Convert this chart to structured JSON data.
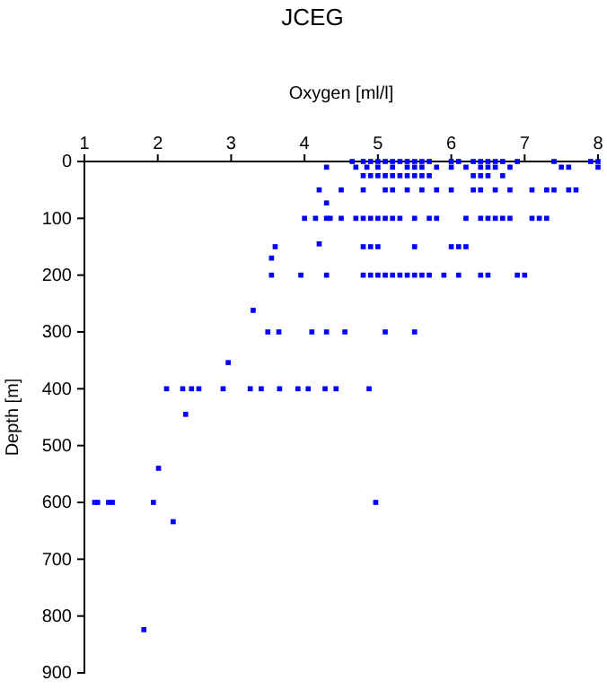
{
  "chart_data": {
    "type": "scatter",
    "title": "JCEG",
    "xlabel": "Oxygen [ml/l]",
    "ylabel": "Depth [m]",
    "xlim": [
      1,
      8
    ],
    "xticks": [
      1,
      2,
      3,
      4,
      5,
      6,
      7,
      8
    ],
    "ylim": [
      900,
      0
    ],
    "yticks": [
      0,
      100,
      200,
      300,
      400,
      500,
      600,
      700,
      800,
      900
    ],
    "marker": "square",
    "grid": false,
    "series": [
      {
        "color": "#0000ff",
        "x": [
          4.65,
          4.8,
          4.9,
          5.0,
          5.1,
          5.2,
          5.3,
          5.4,
          5.5,
          5.6,
          5.7,
          6.0,
          6.1,
          6.3,
          6.4,
          6.5,
          6.6,
          6.7,
          6.9,
          7.4,
          7.9,
          8.0,
          4.3,
          4.7,
          4.85,
          5.0,
          5.2,
          5.4,
          5.5,
          5.6,
          5.8,
          6.0,
          6.2,
          6.4,
          6.5,
          6.6,
          6.8,
          7.5,
          7.6,
          8.0,
          4.8,
          4.9,
          5.0,
          5.1,
          5.2,
          5.3,
          5.4,
          5.5,
          5.6,
          5.7,
          6.3,
          6.4,
          6.5,
          6.7,
          4.2,
          4.5,
          4.8,
          5.1,
          5.2,
          5.4,
          5.6,
          5.8,
          6.0,
          6.3,
          6.4,
          6.6,
          6.8,
          7.1,
          7.3,
          7.4,
          7.6,
          7.7,
          4.3,
          4.0,
          4.15,
          4.3,
          4.35,
          4.5,
          4.7,
          4.8,
          4.9,
          5.0,
          5.1,
          5.2,
          5.3,
          5.5,
          5.7,
          5.8,
          6.2,
          6.4,
          6.5,
          6.6,
          6.7,
          6.8,
          7.1,
          7.2,
          7.3,
          4.2,
          3.6,
          4.8,
          4.9,
          5.0,
          5.5,
          6.0,
          6.1,
          6.2,
          3.55,
          3.55,
          3.95,
          4.3,
          4.8,
          4.9,
          5.0,
          5.1,
          5.2,
          5.3,
          5.4,
          5.5,
          5.6,
          5.7,
          5.9,
          6.1,
          6.4,
          6.5,
          6.9,
          7.0,
          3.3,
          3.5,
          3.65,
          4.1,
          4.3,
          4.55,
          5.1,
          5.5,
          2.96,
          2.12,
          2.34,
          2.46,
          2.56,
          2.89,
          3.26,
          3.41,
          3.66,
          3.91,
          4.05,
          4.28,
          4.43,
          4.88,
          2.38,
          2.01,
          1.14,
          1.18,
          1.33,
          1.38,
          1.94,
          4.97,
          2.21,
          1.81
        ],
        "values": [
          0,
          0,
          0,
          0,
          0,
          0,
          0,
          0,
          0,
          0,
          0,
          0,
          0,
          0,
          0,
          0,
          0,
          0,
          0,
          0,
          0,
          0,
          10,
          10,
          10,
          10,
          10,
          10,
          10,
          10,
          10,
          10,
          10,
          10,
          10,
          10,
          10,
          10,
          10,
          10,
          25,
          25,
          25,
          25,
          25,
          25,
          25,
          25,
          25,
          25,
          25,
          25,
          25,
          25,
          50,
          50,
          50,
          50,
          50,
          50,
          50,
          50,
          50,
          50,
          50,
          50,
          50,
          50,
          50,
          50,
          50,
          50,
          73,
          100,
          100,
          100,
          100,
          100,
          100,
          100,
          100,
          100,
          100,
          100,
          100,
          100,
          100,
          100,
          100,
          100,
          100,
          100,
          100,
          100,
          100,
          100,
          100,
          145,
          150,
          150,
          150,
          150,
          150,
          150,
          150,
          150,
          170,
          200,
          200,
          200,
          200,
          200,
          200,
          200,
          200,
          200,
          200,
          200,
          200,
          200,
          200,
          200,
          200,
          200,
          200,
          200,
          262,
          300,
          300,
          300,
          300,
          300,
          300,
          300,
          354,
          400,
          400,
          400,
          400,
          400,
          400,
          400,
          400,
          400,
          400,
          400,
          400,
          400,
          445,
          540,
          600,
          600,
          600,
          600,
          600,
          600,
          634,
          824
        ]
      }
    ]
  }
}
